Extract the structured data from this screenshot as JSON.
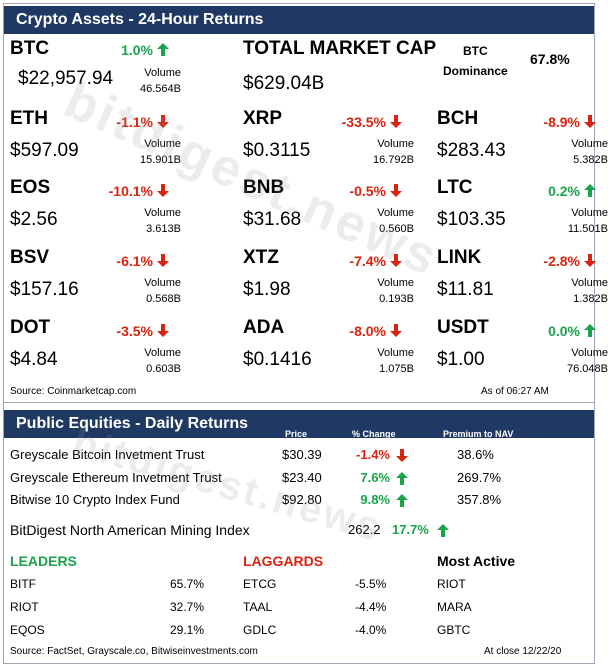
{
  "crypto_section": {
    "title": "Crypto Assets - 24-Hour Returns",
    "btc": {
      "symbol": "BTC",
      "pct": "1.0%",
      "direction": "up",
      "price": "$22,957.94",
      "vol_label": "Volume",
      "volume": "46.564B"
    },
    "total_market_cap": {
      "label": "TOTAL MARKET CAP",
      "value": "$629.04B"
    },
    "dominance": {
      "label_line1": "BTC",
      "label_line2": "Dominance",
      "value": "67.8%"
    },
    "assets": [
      {
        "symbol": "ETH",
        "pct": "-1.1%",
        "direction": "down",
        "price": "$597.09",
        "vol_label": "Volume",
        "volume": "15.901B"
      },
      {
        "symbol": "XRP",
        "pct": "-33.5%",
        "direction": "down",
        "price": "$0.3115",
        "vol_label": "Volume",
        "volume": "16.792B"
      },
      {
        "symbol": "BCH",
        "pct": "-8.9%",
        "direction": "down",
        "price": "$283.43",
        "vol_label": "Volume",
        "volume": "5.382B"
      },
      {
        "symbol": "EOS",
        "pct": "-10.1%",
        "direction": "down",
        "price": "$2.56",
        "vol_label": "Volume",
        "volume": "3.613B"
      },
      {
        "symbol": "BNB",
        "pct": "-0.5%",
        "direction": "down",
        "price": "$31.68",
        "vol_label": "Volume",
        "volume": "0.560B"
      },
      {
        "symbol": "LTC",
        "pct": "0.2%",
        "direction": "up",
        "price": "$103.35",
        "vol_label": "Volume",
        "volume": "11.501B"
      },
      {
        "symbol": "BSV",
        "pct": "-6.1%",
        "direction": "down",
        "price": "$157.16",
        "vol_label": "Volume",
        "volume": "0.568B"
      },
      {
        "symbol": "XTZ",
        "pct": "-7.4%",
        "direction": "down",
        "price": "$1.98",
        "vol_label": "Volume",
        "volume": "0.193B"
      },
      {
        "symbol": "LINK",
        "pct": "-2.8%",
        "direction": "down",
        "price": "$11.81",
        "vol_label": "Volume",
        "volume": "1.382B"
      },
      {
        "symbol": "DOT",
        "pct": "-3.5%",
        "direction": "down",
        "price": "$4.84",
        "vol_label": "Volume",
        "volume": "0.603B"
      },
      {
        "symbol": "ADA",
        "pct": "-8.0%",
        "direction": "down",
        "price": "$0.1416",
        "vol_label": "Volume",
        "volume": "1.075B"
      },
      {
        "symbol": "USDT",
        "pct": "0.0%",
        "direction": "up",
        "price": "$1.00",
        "vol_label": "Volume",
        "volume": "76.048B"
      }
    ],
    "source": "Source: Coinmarketcap.com",
    "as_of": "As of 06:27 AM"
  },
  "equities_section": {
    "title": "Public Equities - Daily Returns",
    "col_price": "Price",
    "col_change": "% Change",
    "col_premium": "Premium to NAV",
    "rows": [
      {
        "name": "Greyscale Bitcoin Invetment Trust",
        "price": "$30.39",
        "change": "-1.4%",
        "direction": "down",
        "premium": "38.6%"
      },
      {
        "name": "Greyscale Ethereum Invetment Trust",
        "price": "$23.40",
        "change": "7.6%",
        "direction": "up",
        "premium": "269.7%"
      },
      {
        "name": "Bitwise 10 Crypto Index Fund",
        "price": "$92.80",
        "change": "9.8%",
        "direction": "up",
        "premium": "357.8%"
      }
    ],
    "mining_index": {
      "name": "BitDigest North American Mining Index",
      "value": "262.2",
      "change": "17.7%",
      "direction": "up"
    },
    "leaders": {
      "title": "LEADERS",
      "items": [
        {
          "ticker": "BITF",
          "value": "65.7%"
        },
        {
          "ticker": "RIOT",
          "value": "32.7%"
        },
        {
          "ticker": "EQOS",
          "value": "29.1%"
        }
      ]
    },
    "laggards": {
      "title": "LAGGARDS",
      "items": [
        {
          "ticker": "ETCG",
          "value": "-5.5%"
        },
        {
          "ticker": "TAAL",
          "value": "-4.4%"
        },
        {
          "ticker": "GDLC",
          "value": "-4.0%"
        }
      ]
    },
    "most_active": {
      "title": "Most Active",
      "items": [
        "RIOT",
        "MARA",
        "GBTC"
      ]
    },
    "source": "Source: FactSet, Grayscale.co, Bitwiseinvestments.com",
    "as_of": "At close 12/22/20"
  },
  "watermark_text": "bitdigest.news",
  "colors": {
    "header_bg": "#1f3864",
    "up": "#19a34a",
    "down": "#d9230f",
    "leaders": "#19a34a",
    "laggards": "#d9230f"
  }
}
